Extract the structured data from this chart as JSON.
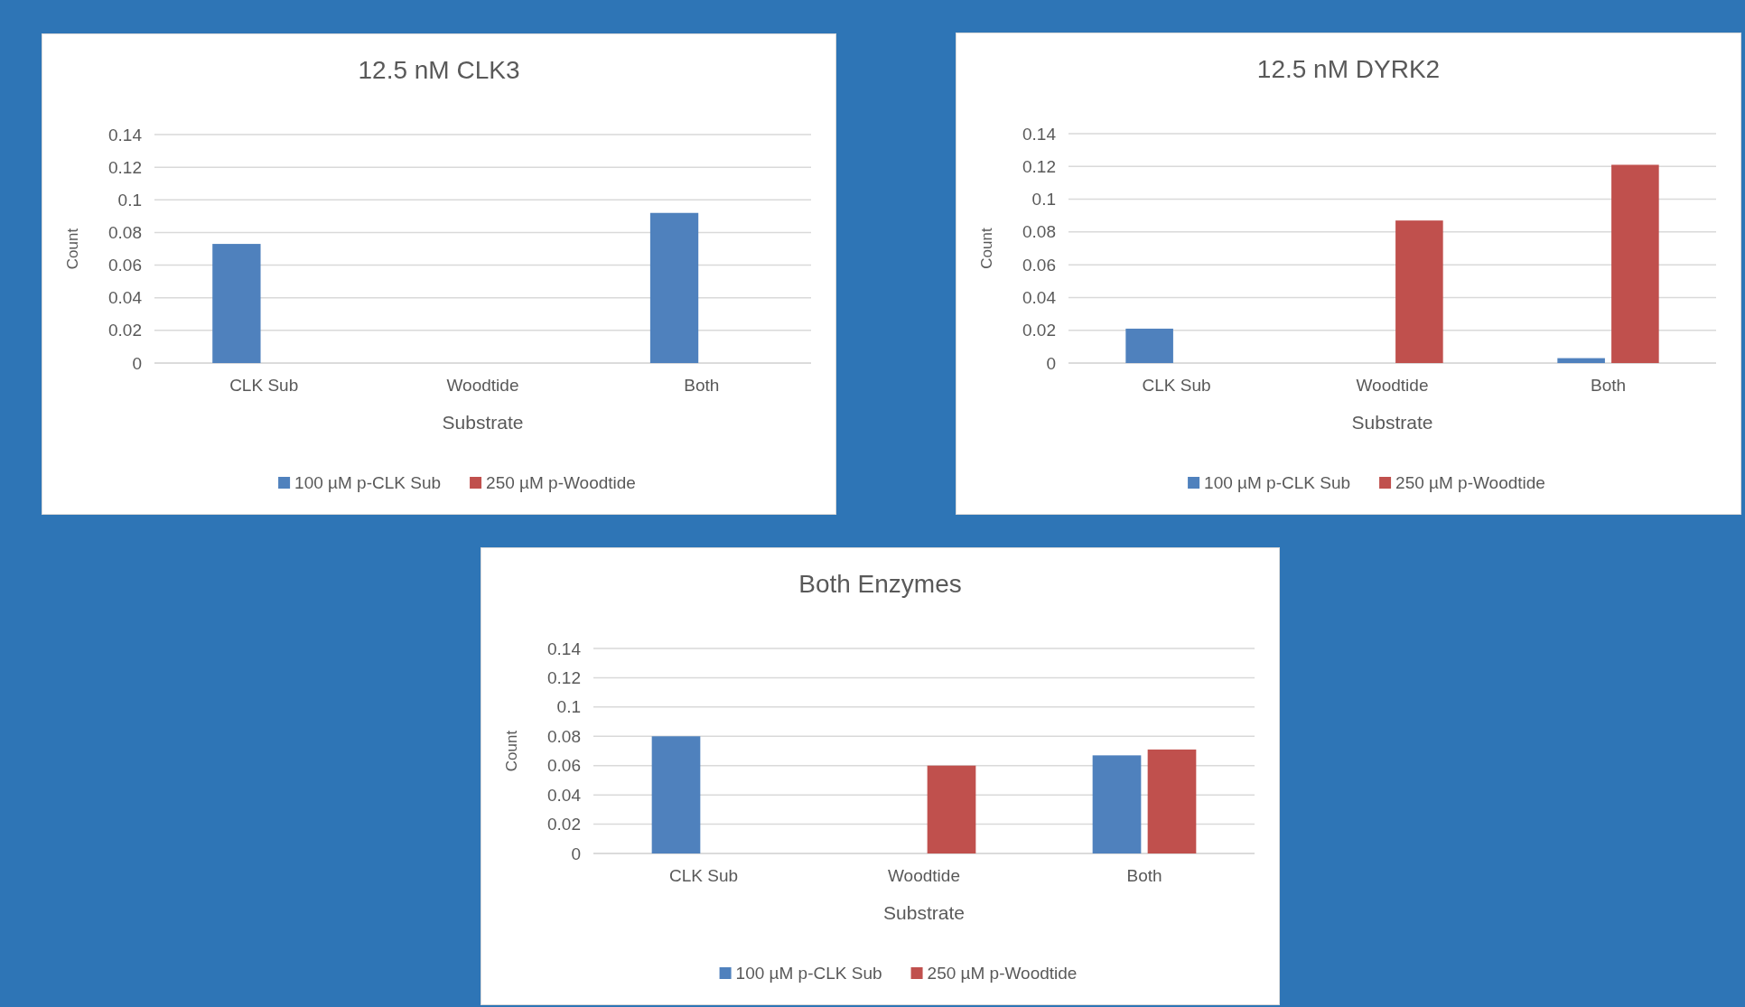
{
  "chart_data": [
    {
      "type": "bar",
      "title": "12.5 nM CLK3",
      "xlabel": "Substrate",
      "ylabel": "Count",
      "categories": [
        "CLK Sub",
        "Woodtide",
        "Both"
      ],
      "series": [
        {
          "name": "100 µM p-CLK Sub",
          "color": "#4f81bd",
          "values": [
            0.073,
            null,
            0.092
          ]
        },
        {
          "name": "250 µM p-Woodtide",
          "color": "#c0504d",
          "values": [
            null,
            null,
            null
          ]
        }
      ],
      "ylim": [
        0,
        0.14
      ],
      "yticks": [
        0,
        0.02,
        0.04,
        0.06,
        0.08,
        0.1,
        0.12,
        0.14
      ],
      "grid": "y",
      "legend": "bottom"
    },
    {
      "type": "bar",
      "title": "12.5 nM DYRK2",
      "xlabel": "Substrate",
      "ylabel": "Count",
      "categories": [
        "CLK Sub",
        "Woodtide",
        "Both"
      ],
      "series": [
        {
          "name": "100 µM p-CLK Sub",
          "color": "#4f81bd",
          "values": [
            0.021,
            null,
            0.003
          ]
        },
        {
          "name": "250 µM p-Woodtide",
          "color": "#c0504d",
          "values": [
            null,
            0.087,
            0.121
          ]
        }
      ],
      "ylim": [
        0,
        0.14
      ],
      "yticks": [
        0,
        0.02,
        0.04,
        0.06,
        0.08,
        0.1,
        0.12,
        0.14
      ],
      "grid": "y",
      "legend": "bottom"
    },
    {
      "type": "bar",
      "title": "Both Enzymes",
      "xlabel": "Substrate",
      "ylabel": "Count",
      "categories": [
        "CLK Sub",
        "Woodtide",
        "Both"
      ],
      "series": [
        {
          "name": "100 µM p-CLK Sub",
          "color": "#4f81bd",
          "values": [
            0.08,
            null,
            0.067
          ]
        },
        {
          "name": "250 µM p-Woodtide",
          "color": "#c0504d",
          "values": [
            null,
            0.06,
            0.071
          ]
        }
      ],
      "ylim": [
        0,
        0.14
      ],
      "yticks": [
        0,
        0.02,
        0.04,
        0.06,
        0.08,
        0.1,
        0.12,
        0.14
      ],
      "grid": "y",
      "legend": "bottom"
    }
  ]
}
